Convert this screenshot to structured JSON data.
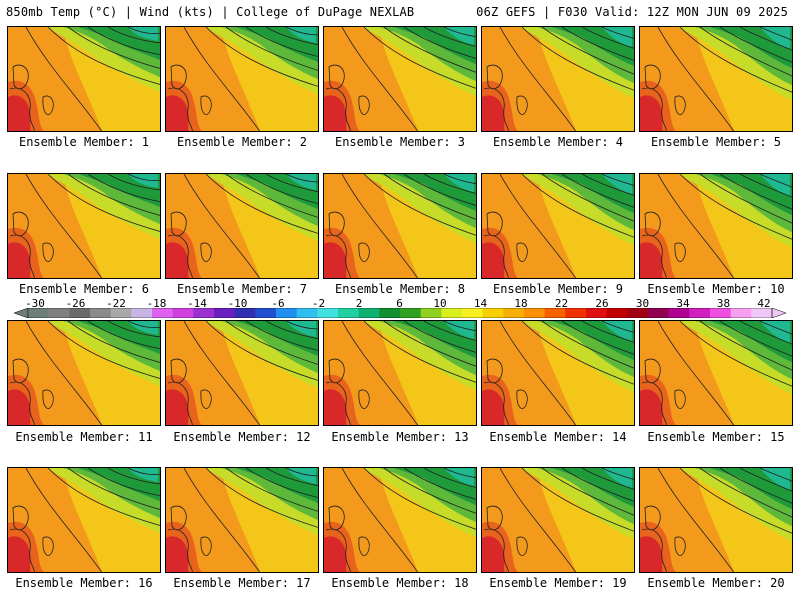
{
  "header": {
    "left": "850mb Temp (°C) | Wind (kts) | College of DuPage NEXLAB",
    "right": "06Z GEFS | F030 Valid: 12Z MON JUN 09 2025"
  },
  "panels": [
    {
      "label": "Ensemble Member: 1"
    },
    {
      "label": "Ensemble Member: 2"
    },
    {
      "label": "Ensemble Member: 3"
    },
    {
      "label": "Ensemble Member: 4"
    },
    {
      "label": "Ensemble Member: 5"
    },
    {
      "label": "Ensemble Member: 6"
    },
    {
      "label": "Ensemble Member: 7"
    },
    {
      "label": "Ensemble Member: 8"
    },
    {
      "label": "Ensemble Member: 9"
    },
    {
      "label": "Ensemble Member: 10"
    },
    {
      "label": "Ensemble Member: 11"
    },
    {
      "label": "Ensemble Member: 12"
    },
    {
      "label": "Ensemble Member: 13"
    },
    {
      "label": "Ensemble Member: 14"
    },
    {
      "label": "Ensemble Member: 15"
    },
    {
      "label": "Ensemble Member: 16"
    },
    {
      "label": "Ensemble Member: 17"
    },
    {
      "label": "Ensemble Member: 18"
    },
    {
      "label": "Ensemble Member: 19"
    },
    {
      "label": "Ensemble Member: 20"
    }
  ],
  "colorbar": {
    "tick_labels": [
      "-30",
      "-26",
      "-22",
      "-18",
      "-14",
      "-10",
      "-6",
      "-2",
      "2",
      "6",
      "10",
      "14",
      "18",
      "22",
      "26",
      "30",
      "34",
      "38",
      "42"
    ],
    "colors": [
      "#6f7f78",
      "#808080",
      "#6a6a6a",
      "#8a8a8a",
      "#a8a8a8",
      "#c9b4e6",
      "#e060f0",
      "#d040e0",
      "#9a30d0",
      "#6a20c0",
      "#3030b0",
      "#2050d0",
      "#2090f0",
      "#30c0f0",
      "#40e0e0",
      "#20d0a0",
      "#10b070",
      "#109030",
      "#30a020",
      "#90d020",
      "#d8f020",
      "#f8f020",
      "#f8d000",
      "#f8b000",
      "#f89000",
      "#f86000",
      "#f03000",
      "#e01010",
      "#c00000",
      "#a00010",
      "#900050",
      "#b00090",
      "#d020c0",
      "#f050e0",
      "#f8a0f0",
      "#f0c8f8"
    ]
  },
  "map_colors": {
    "warm_red": "#d8282a",
    "orange": "#f39a1c",
    "yellow_orange": "#f4c21a",
    "yellow": "#f2ea1c",
    "yellow_green": "#c6dc28",
    "green": "#5eb83a",
    "dark_green": "#1e9a3a",
    "teal": "#1fb890"
  }
}
